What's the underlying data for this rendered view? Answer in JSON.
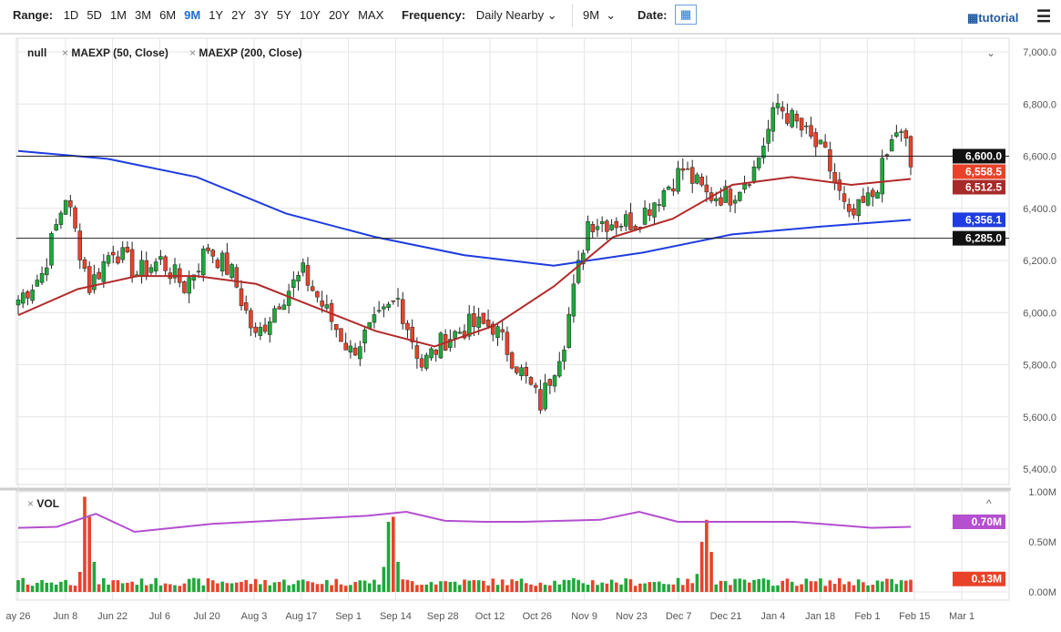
{
  "toolbar": {
    "range_label": "Range:",
    "ranges": [
      "1D",
      "5D",
      "1M",
      "3M",
      "6M",
      "9M",
      "1Y",
      "2Y",
      "3Y",
      "5Y",
      "10Y",
      "20Y",
      "MAX"
    ],
    "selected_range": "9M",
    "frequency_label": "Frequency:",
    "frequency_value": "Daily Nearby",
    "period_value": "9M",
    "date_label": "Date:",
    "tutorial_label": "tutorial"
  },
  "legend": {
    "series": "null",
    "ma1": "MAEXP (50, Close)",
    "ma2": "MAEXP (200, Close)",
    "vol": "VOL"
  },
  "colors": {
    "up": "#1fa83a",
    "down": "#e8432a",
    "ma50": "#b22a2a",
    "ma200": "#1f3de0",
    "volavg": "#b44fd0"
  },
  "chart_data": {
    "type": "candlestick",
    "price_axis": {
      "ticks": [
        "7,000.0",
        "6,800.0",
        "6,600.0",
        "6,400.0",
        "6,200.0",
        "6,000.0",
        "5,800.0",
        "5,600.0",
        "5,400.0"
      ],
      "tick_values": [
        7000,
        6800,
        6600,
        6400,
        6200,
        6000,
        5800,
        5600,
        5400
      ],
      "ylim": [
        5400,
        7000
      ]
    },
    "x_ticks": [
      "ay 26",
      "Jun 8",
      "Jun 22",
      "Jul 6",
      "Jul 20",
      "Aug 3",
      "Aug 17",
      "Sep 1",
      "Sep 14",
      "Sep 28",
      "Oct 12",
      "Oct 26",
      "Nov 9",
      "Nov 23",
      "Dec 7",
      "Dec 21",
      "Jan 4",
      "Jan 18",
      "Feb 1",
      "Feb 15",
      "Mar 1"
    ],
    "weekly_closes": [
      6050,
      6150,
      6450,
      6100,
      6250,
      6150,
      6200,
      6100,
      6250,
      6150,
      5900,
      6050,
      6150,
      6000,
      5850,
      5950,
      6050,
      5800,
      5900,
      5950,
      5950,
      5800,
      5650,
      5900,
      6350,
      6350,
      6350,
      6450,
      6550,
      6450,
      6450,
      6550,
      6800,
      6700,
      6600,
      6350,
      6450,
      6700,
      6558.5
    ],
    "ma50": [
      5990,
      6090,
      6140,
      6140,
      6110,
      6020,
      5930,
      5870,
      5950,
      6100,
      6290,
      6360,
      6490,
      6520,
      6490,
      6512.5
    ],
    "ma200": [
      6620,
      6590,
      6520,
      6380,
      6290,
      6220,
      6180,
      6230,
      6300,
      6330,
      6356.1
    ],
    "hlines": [
      {
        "value": 6600,
        "label": "6,600.0"
      },
      {
        "value": 6285,
        "label": "6,285.0"
      }
    ],
    "last_tags": [
      {
        "label": "6,558.5",
        "value": 6558.5,
        "color": "#e8432a"
      },
      {
        "label": "6,512.5",
        "value": 6512.5,
        "color": "#a82a2a"
      },
      {
        "label": "6,356.1",
        "value": 6356.1,
        "color": "#1f3de0"
      }
    ],
    "volume_axis": {
      "ticks": [
        "1.00M",
        "0.50M",
        "0.00M"
      ],
      "tick_values": [
        1,
        0.5,
        0
      ]
    },
    "volume_tags": [
      {
        "label": "0.70M",
        "value": 0.7,
        "color": "#b44fd0"
      },
      {
        "label": "0.13M",
        "value": 0.13,
        "color": "#e8432a"
      }
    ],
    "volume_spikes": [
      {
        "day": 14,
        "v": 0.95
      },
      {
        "day": 15,
        "v": 0.75
      },
      {
        "day": 13,
        "v": 0.2
      },
      {
        "day": 16,
        "v": 0.3
      },
      {
        "day": 78,
        "v": 0.7
      },
      {
        "day": 79,
        "v": 0.75
      },
      {
        "day": 77,
        "v": 0.25
      },
      {
        "day": 80,
        "v": 0.3
      },
      {
        "day": 145,
        "v": 0.72
      },
      {
        "day": 144,
        "v": 0.5
      },
      {
        "day": 146,
        "v": 0.4
      },
      {
        "day": 143,
        "v": 0.18
      }
    ],
    "volume_avg": [
      0.64,
      0.65,
      0.78,
      0.6,
      0.64,
      0.68,
      0.7,
      0.72,
      0.74,
      0.76,
      0.8,
      0.71,
      0.7,
      0.7,
      0.71,
      0.72,
      0.8,
      0.7,
      0.7,
      0.7,
      0.7,
      0.67,
      0.64,
      0.65
    ]
  }
}
